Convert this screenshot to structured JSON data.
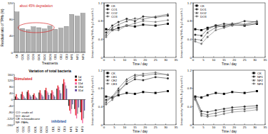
{
  "chart_data": [
    {
      "type": "bar",
      "ylabel": "Residual ratio of TPHs (%)",
      "xlabel": "Treatments",
      "categories": [
        "CK",
        "CO1",
        "CO2",
        "CO3",
        "DO1",
        "DO2",
        "DO3",
        "CE1",
        "CE2",
        "CE3",
        "NF1",
        "NF2",
        "NF3"
      ],
      "values": [
        98,
        58,
        55,
        62,
        60,
        57,
        64,
        56,
        59,
        63,
        92,
        88,
        95
      ],
      "color": "#b0b0b0",
      "ylim": [
        0,
        120
      ],
      "yticks": [
        0,
        40,
        80,
        120
      ],
      "annotations": [
        "about 45% degradation"
      ]
    },
    {
      "type": "line",
      "xlabel": "Time / day",
      "ylabel": "Urease activity / mg NH4+-N g-1 dry soil h-1",
      "x": [
        1,
        4,
        7,
        11,
        15,
        19,
        25,
        31
      ],
      "series": [
        {
          "name": "CK",
          "color": "#000000",
          "marker": "square",
          "values": [
            0.62,
            0.6,
            0.65,
            0.7,
            0.68,
            0.72,
            0.7,
            0.74
          ]
        },
        {
          "name": "CO1",
          "color": "#333333",
          "marker": "circle",
          "values": [
            0.55,
            0.7,
            0.78,
            0.85,
            0.8,
            0.9,
            0.88,
            0.92
          ]
        },
        {
          "name": "CO2",
          "color": "#555555",
          "marker": "triangle",
          "values": [
            0.5,
            0.65,
            0.72,
            0.8,
            0.86,
            0.84,
            0.9,
            0.95
          ]
        },
        {
          "name": "CO3",
          "color": "#777777",
          "marker": "diamond",
          "values": [
            0.45,
            0.6,
            0.6,
            0.7,
            0.75,
            0.8,
            0.78,
            0.82
          ]
        }
      ],
      "xlim": [
        0,
        35
      ],
      "xticks": [
        0,
        5,
        10,
        15,
        20,
        25,
        30,
        35
      ],
      "ylim": [
        0,
        1.2
      ],
      "yticks": [
        0,
        0.4,
        0.8,
        1.2
      ],
      "legend": "upper left"
    },
    {
      "type": "line",
      "xlabel": "Time / day",
      "ylabel": "Urease activity / mg NH4+-N g-1 dry soil h-1",
      "x": [
        1,
        4,
        7,
        11,
        15,
        19,
        25,
        31
      ],
      "series": [
        {
          "name": "CK",
          "color": "#000000",
          "marker": "square",
          "values": [
            0.62,
            0.6,
            0.65,
            0.7,
            0.68,
            0.72,
            0.7,
            0.74
          ]
        },
        {
          "name": "DO1",
          "color": "#333333",
          "marker": "circle",
          "values": [
            0.5,
            0.48,
            0.62,
            0.7,
            0.74,
            0.72,
            0.8,
            0.78
          ]
        },
        {
          "name": "DO2",
          "color": "#555555",
          "marker": "triangle",
          "values": [
            0.4,
            0.38,
            0.55,
            0.66,
            0.7,
            0.75,
            0.73,
            0.8
          ]
        },
        {
          "name": "DO3",
          "color": "#777777",
          "marker": "diamond",
          "values": [
            0.35,
            0.3,
            0.45,
            0.6,
            0.65,
            0.7,
            0.72,
            0.76
          ]
        }
      ],
      "xlim": [
        0,
        35
      ],
      "xticks": [
        0,
        5,
        10,
        15,
        20,
        25,
        30,
        35
      ],
      "ylim": [
        0,
        1.2
      ],
      "yticks": [
        0,
        0.4,
        0.8,
        1.2
      ],
      "legend": "upper left"
    },
    {
      "type": "bar",
      "title": "Variation of total bacteria",
      "categories": [
        "CO1",
        "CO2",
        "CO3",
        "DO1",
        "DO2",
        "DO3",
        "CE1",
        "CE2",
        "CE3",
        "NF1",
        "NF2",
        "NF3"
      ],
      "series": [
        {
          "name": "1d",
          "color": "#1f1f1f",
          "values": [
            20,
            35,
            50,
            30,
            45,
            60,
            40,
            70,
            100,
            -40,
            -60,
            -80
          ]
        },
        {
          "name": "4d",
          "color": "#e31a1c",
          "values": [
            35,
            50,
            60,
            40,
            60,
            75,
            60,
            90,
            130,
            -70,
            -100,
            -130
          ]
        },
        {
          "name": "11d",
          "color": "#f768a1",
          "values": [
            15,
            30,
            40,
            25,
            40,
            55,
            50,
            80,
            110,
            -90,
            -120,
            -150
          ]
        },
        {
          "name": "19d",
          "color": "#8c8c8c",
          "values": [
            10,
            20,
            30,
            15,
            30,
            45,
            30,
            60,
            90,
            -60,
            -90,
            -120
          ]
        },
        {
          "name": "31d",
          "color": "#6a51a3",
          "values": [
            5,
            10,
            20,
            10,
            20,
            30,
            20,
            40,
            70,
            -30,
            -50,
            -70
          ]
        }
      ],
      "ylim": [
        -160,
        160
      ],
      "yticks": [
        -160,
        -120,
        -80,
        -40,
        0,
        40,
        80,
        120,
        160
      ],
      "legend": "upper right",
      "annotations": [
        "Stimulated",
        "inhibited"
      ],
      "notes": [
        "CO: crude oil",
        "DO: diesel",
        "CE: n-hexadecane",
        "NF: PAHs"
      ]
    },
    {
      "type": "line",
      "xlabel": "Time / day",
      "ylabel": "Urease activity / mg NH4+-N g-1 dry soil h-1",
      "x": [
        1,
        4,
        7,
        11,
        15,
        19,
        25,
        31
      ],
      "series": [
        {
          "name": "CK",
          "color": "#000000",
          "marker": "square",
          "values": [
            0.62,
            0.6,
            0.65,
            0.7,
            0.68,
            0.72,
            0.7,
            0.74
          ]
        },
        {
          "name": "CE1",
          "color": "#333333",
          "marker": "circle",
          "values": [
            0.55,
            0.6,
            0.75,
            0.9,
            1.0,
            0.98,
            1.05,
            1.02
          ]
        },
        {
          "name": "CE2",
          "color": "#555555",
          "marker": "triangle",
          "values": [
            0.5,
            0.62,
            0.8,
            1.0,
            1.1,
            1.08,
            1.12,
            1.1
          ]
        },
        {
          "name": "CE3",
          "color": "#777777",
          "marker": "diamond",
          "values": [
            0.45,
            0.55,
            0.7,
            0.95,
            1.05,
            1.12,
            1.15,
            1.1
          ]
        }
      ],
      "xlim": [
        0,
        35
      ],
      "xticks": [
        0,
        5,
        10,
        15,
        20,
        25,
        30,
        35
      ],
      "ylim": [
        0,
        1.2
      ],
      "yticks": [
        0,
        0.4,
        0.8,
        1.2
      ],
      "legend": "upper left"
    },
    {
      "type": "line",
      "xlabel": "Time / day",
      "ylabel": "Urease activity / mg NH4+-N g-1 dry soil h-1",
      "x": [
        1,
        4,
        7,
        11,
        15,
        19,
        25,
        31
      ],
      "series": [
        {
          "name": "CK",
          "color": "#000000",
          "marker": "square",
          "values": [
            0.62,
            0.6,
            0.65,
            0.7,
            0.68,
            0.72,
            0.7,
            0.74
          ]
        },
        {
          "name": "NF1",
          "color": "#333333",
          "marker": "circle",
          "values": [
            0.6,
            0.3,
            0.28,
            0.32,
            0.35,
            0.38,
            0.4,
            0.42
          ]
        },
        {
          "name": "NF2",
          "color": "#555555",
          "marker": "triangle",
          "values": [
            0.58,
            0.25,
            0.22,
            0.26,
            0.3,
            0.33,
            0.35,
            0.38
          ]
        },
        {
          "name": "NF3",
          "color": "#777777",
          "marker": "diamond",
          "values": [
            0.55,
            0.2,
            0.18,
            0.2,
            0.24,
            0.28,
            0.3,
            0.33
          ]
        }
      ],
      "xlim": [
        0,
        35
      ],
      "xticks": [
        0,
        5,
        10,
        15,
        20,
        25,
        30,
        35
      ],
      "ylim": [
        0,
        1.2
      ],
      "yticks": [
        0,
        0.4,
        0.8,
        1.2
      ],
      "legend": "upper right"
    }
  ]
}
